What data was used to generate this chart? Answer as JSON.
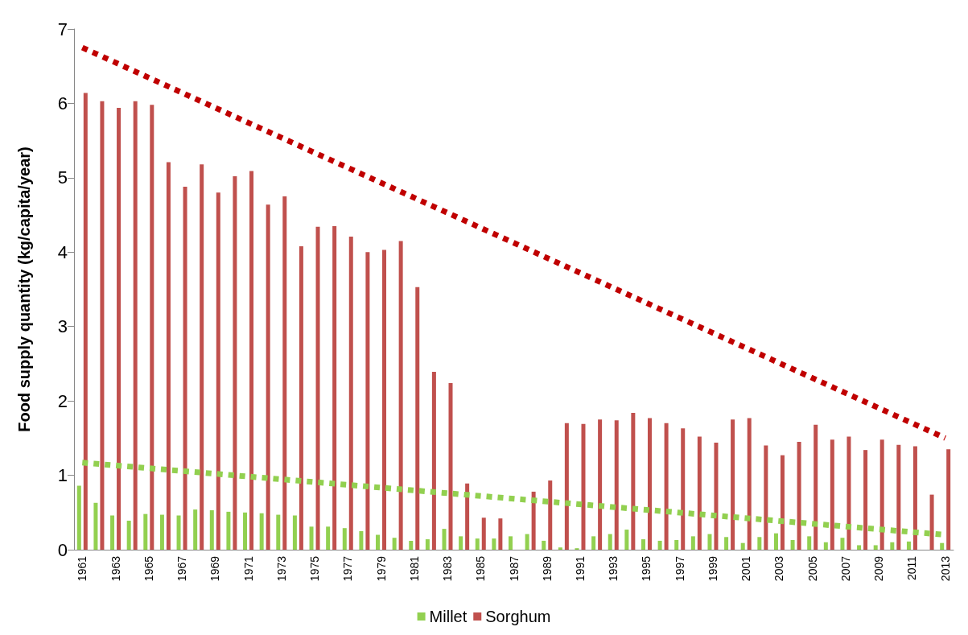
{
  "chart_data": {
    "type": "bar",
    "ylabel": "Food supply quantity (kg/capita/year)",
    "categories": [
      "1961",
      null,
      "1963",
      null,
      "1965",
      null,
      "1967",
      null,
      "1969",
      null,
      "1971",
      null,
      "1973",
      null,
      "1975",
      null,
      "1977",
      null,
      "1979",
      null,
      "1981",
      null,
      "1983",
      null,
      "1985",
      null,
      "1987",
      null,
      "1989",
      null,
      "1991",
      null,
      "1993",
      null,
      "1995",
      null,
      "1997",
      null,
      "1999",
      null,
      "2001",
      null,
      "2003",
      null,
      "2005",
      null,
      "2007",
      null,
      "2009",
      null,
      "2011",
      null,
      "2013"
    ],
    "series": [
      {
        "name": "Millet",
        "color": "#92d050",
        "values": [
          0.86,
          0.63,
          0.46,
          0.39,
          0.48,
          0.47,
          0.46,
          0.54,
          0.53,
          0.51,
          0.5,
          0.49,
          0.47,
          0.46,
          0.31,
          0.31,
          0.29,
          0.25,
          0.2,
          0.16,
          0.12,
          0.14,
          0.28,
          0.18,
          0.15,
          0.15,
          0.18,
          0.21,
          0.12,
          0.03,
          0.02,
          0.18,
          0.21,
          0.27,
          0.14,
          0.12,
          0.13,
          0.18,
          0.21,
          0.17,
          0.09,
          0.17,
          0.22,
          0.13,
          0.18,
          0.1,
          0.16,
          0.06,
          0.06,
          0.1,
          0.11,
          null,
          0.09
        ]
      },
      {
        "name": "Sorghum",
        "color": "#c0504d",
        "values": [
          6.14,
          6.03,
          5.94,
          6.03,
          5.98,
          5.21,
          4.88,
          5.18,
          4.8,
          5.02,
          5.09,
          4.64,
          4.75,
          4.08,
          4.34,
          4.35,
          4.21,
          4.0,
          4.03,
          4.15,
          3.53,
          2.39,
          2.24,
          0.89,
          0.43,
          0.42,
          null,
          0.78,
          0.93,
          1.7,
          1.69,
          1.75,
          1.74,
          1.84,
          1.77,
          1.7,
          1.63,
          1.52,
          1.44,
          1.75,
          1.77,
          1.4,
          1.27,
          1.45,
          1.68,
          1.48,
          1.52,
          1.34,
          1.48,
          1.41,
          1.39,
          0.74,
          1.35
        ]
      },
      {
        "type": "line",
        "color": "#c00000",
        "line_style": "dotted",
        "values": [
          6.75,
          null,
          null,
          null,
          null,
          null,
          null,
          null,
          null,
          null,
          null,
          null,
          null,
          null,
          null,
          null,
          null,
          null,
          null,
          null,
          null,
          null,
          null,
          null,
          null,
          null,
          null,
          null,
          null,
          null,
          null,
          null,
          null,
          null,
          null,
          null,
          null,
          null,
          null,
          null,
          null,
          null,
          null,
          null,
          null,
          null,
          null,
          null,
          null,
          null,
          null,
          null,
          1.5
        ]
      },
      {
        "type": "line",
        "color": "#92d050",
        "line_style": "dotted",
        "values": [
          1.17,
          null,
          null,
          null,
          null,
          null,
          null,
          null,
          null,
          null,
          null,
          null,
          null,
          null,
          null,
          null,
          null,
          null,
          null,
          null,
          null,
          null,
          null,
          null,
          null,
          null,
          null,
          null,
          null,
          null,
          null,
          null,
          null,
          null,
          null,
          null,
          null,
          null,
          null,
          null,
          null,
          null,
          null,
          null,
          null,
          null,
          null,
          null,
          null,
          null,
          null,
          null,
          0.2
        ]
      }
    ],
    "ylim": [
      0,
      7
    ],
    "yticks": [
      0,
      1,
      2,
      3,
      4,
      5,
      6,
      7
    ],
    "grid": false,
    "legend": "bottom"
  }
}
